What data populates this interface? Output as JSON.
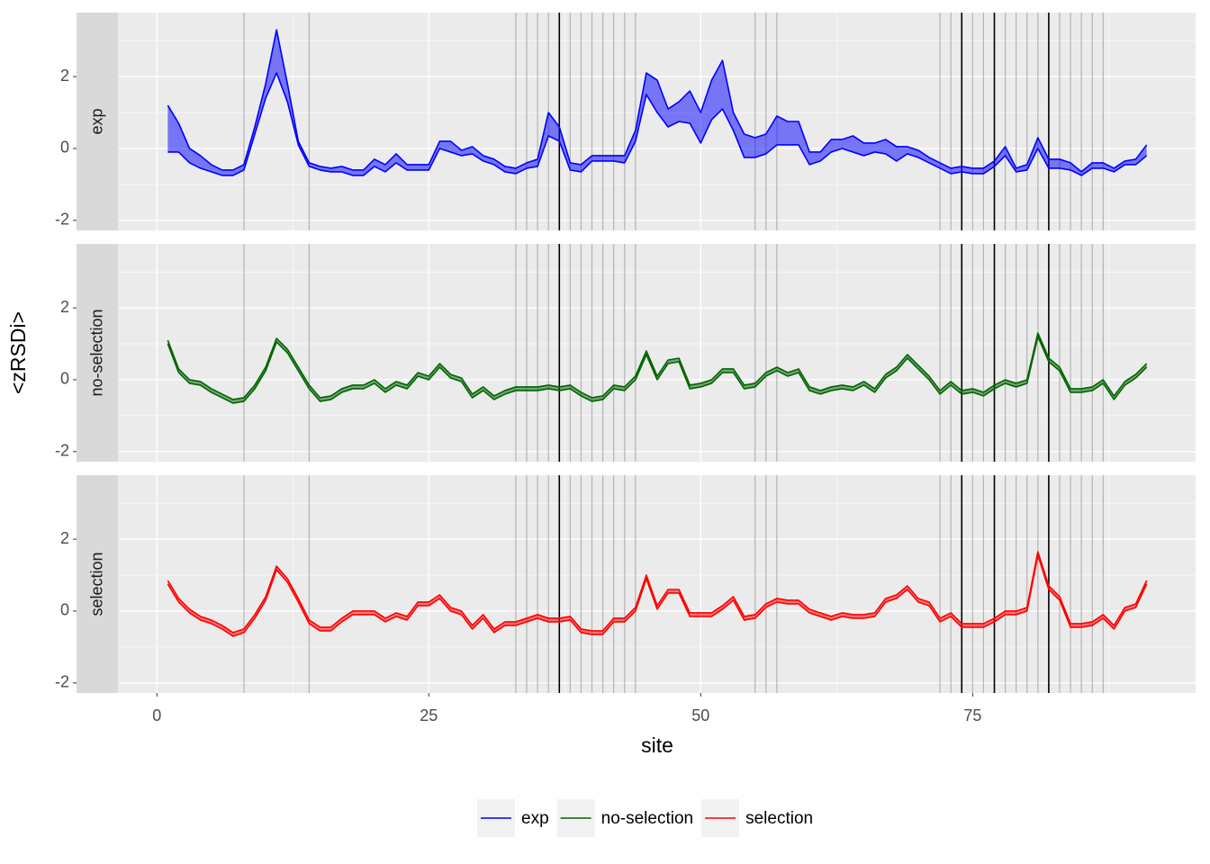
{
  "chart_data": {
    "type": "ribbon",
    "xlabel": "site",
    "ylabel": "<zRSDi>",
    "x": [
      1,
      2,
      3,
      4,
      5,
      6,
      7,
      8,
      9,
      10,
      11,
      12,
      13,
      14,
      15,
      16,
      17,
      18,
      19,
      20,
      21,
      22,
      23,
      24,
      25,
      26,
      27,
      28,
      29,
      30,
      31,
      32,
      33,
      34,
      35,
      36,
      37,
      38,
      39,
      40,
      41,
      42,
      43,
      44,
      45,
      46,
      47,
      48,
      49,
      50,
      51,
      52,
      53,
      54,
      55,
      56,
      57,
      58,
      59,
      60,
      61,
      62,
      63,
      64,
      65,
      66,
      67,
      68,
      69,
      70,
      71,
      72,
      73,
      74,
      75,
      76,
      77,
      78,
      79,
      80,
      81,
      82,
      83,
      84,
      85,
      86,
      87,
      88,
      89,
      90,
      91
    ],
    "xlim": [
      -3.5,
      95.5
    ],
    "xticks": [
      0,
      25,
      50,
      75
    ],
    "minor_xticks": [
      12.5,
      37.5,
      62.5,
      87.5
    ],
    "ylim": [
      -2.28,
      3.78
    ],
    "yticks": [
      -2,
      0,
      2
    ],
    "minor_yticks": [
      -1,
      1,
      3
    ],
    "grid": true,
    "legend": "bottom",
    "reference_lines": [
      {
        "color": "#b3b3b3",
        "x": [
          8,
          14,
          33,
          34,
          35,
          36,
          38,
          39,
          40,
          41,
          42,
          43,
          44,
          55,
          56,
          57,
          72,
          73,
          75,
          76,
          78,
          79,
          80,
          81,
          83,
          84,
          85,
          86,
          87
        ]
      },
      {
        "color": "#000000",
        "x": [
          37,
          74,
          77,
          82
        ]
      }
    ],
    "series": [
      {
        "name": "exp",
        "color": "#0000ff",
        "fill": "#8080ff",
        "upper": [
          1.2,
          0.7,
          0,
          -0.2,
          -0.45,
          -0.6,
          -0.6,
          -0.45,
          0.6,
          1.8,
          3.3,
          1.8,
          0.2,
          -0.4,
          -0.5,
          -0.55,
          -0.5,
          -0.6,
          -0.6,
          -0.3,
          -0.45,
          -0.15,
          -0.45,
          -0.45,
          -0.45,
          0.2,
          0.2,
          -0.05,
          0.05,
          -0.2,
          -0.3,
          -0.5,
          -0.55,
          -0.4,
          -0.3,
          1,
          0.6,
          -0.4,
          -0.45,
          -0.2,
          -0.2,
          -0.2,
          -0.2,
          0.5,
          2.1,
          1.9,
          1.1,
          1.3,
          1.6,
          1,
          1.9,
          2.45,
          1,
          0.4,
          0.3,
          0.4,
          0.9,
          0.75,
          0.75,
          -0.1,
          -0.1,
          0.25,
          0.25,
          0.35,
          0.15,
          0.15,
          0.25,
          0.05,
          0.05,
          -0.05,
          -0.25,
          -0.4,
          -0.55,
          -0.5,
          -0.55,
          -0.55,
          -0.35,
          0.05,
          -0.55,
          -0.45,
          0.3,
          -0.3,
          -0.3,
          -0.4,
          -0.65,
          -0.4,
          -0.4,
          -0.55,
          -0.35,
          -0.3,
          0.1
        ],
        "lower": [
          -0.1,
          -0.1,
          -0.4,
          -0.55,
          -0.65,
          -0.75,
          -0.75,
          -0.6,
          0.4,
          1.4,
          2.1,
          1.3,
          0.1,
          -0.5,
          -0.6,
          -0.65,
          -0.65,
          -0.75,
          -0.75,
          -0.5,
          -0.65,
          -0.4,
          -0.6,
          -0.6,
          -0.6,
          0,
          -0.1,
          -0.2,
          -0.15,
          -0.35,
          -0.45,
          -0.65,
          -0.7,
          -0.55,
          -0.5,
          0.35,
          0.2,
          -0.6,
          -0.65,
          -0.35,
          -0.35,
          -0.35,
          -0.4,
          0.2,
          1.5,
          1,
          0.6,
          0.75,
          0.7,
          0.15,
          0.8,
          1.1,
          0.5,
          -0.25,
          -0.25,
          -0.15,
          0.1,
          0.1,
          0.1,
          -0.45,
          -0.35,
          -0.1,
          0,
          -0.1,
          -0.2,
          -0.1,
          -0.15,
          -0.35,
          -0.15,
          -0.25,
          -0.4,
          -0.55,
          -0.7,
          -0.65,
          -0.7,
          -0.7,
          -0.5,
          -0.2,
          -0.65,
          -0.6,
          0,
          -0.55,
          -0.55,
          -0.6,
          -0.75,
          -0.55,
          -0.55,
          -0.65,
          -0.45,
          -0.45,
          -0.2
        ]
      },
      {
        "name": "no-selection",
        "color": "#006400",
        "fill": "#80b280",
        "upper": [
          1.1,
          0.3,
          0,
          -0.05,
          -0.25,
          -0.4,
          -0.55,
          -0.5,
          -0.15,
          0.35,
          1.15,
          0.85,
          0.35,
          -0.15,
          -0.5,
          -0.45,
          -0.25,
          -0.15,
          -0.15,
          0,
          -0.25,
          -0.05,
          -0.15,
          0.2,
          0.1,
          0.45,
          0.15,
          0.05,
          -0.4,
          -0.2,
          -0.45,
          -0.3,
          -0.2,
          -0.2,
          -0.2,
          -0.15,
          -0.2,
          -0.15,
          -0.35,
          -0.5,
          -0.45,
          -0.15,
          -0.2,
          0.1,
          0.8,
          0.1,
          0.55,
          0.6,
          -0.15,
          -0.1,
          0,
          0.3,
          0.3,
          -0.15,
          -0.1,
          0.2,
          0.35,
          0.2,
          0.3,
          -0.2,
          -0.3,
          -0.2,
          -0.15,
          -0.2,
          -0.05,
          -0.25,
          0.15,
          0.35,
          0.7,
          0.4,
          0.1,
          -0.3,
          -0.05,
          -0.3,
          -0.25,
          -0.35,
          -0.15,
          0,
          -0.1,
          0,
          1.3,
          0.6,
          0.35,
          -0.25,
          -0.25,
          -0.2,
          0,
          -0.45,
          -0.05,
          0.15,
          0.45
        ],
        "lower": [
          1,
          0.2,
          -0.1,
          -0.15,
          -0.35,
          -0.5,
          -0.65,
          -0.6,
          -0.25,
          0.25,
          1.05,
          0.75,
          0.25,
          -0.25,
          -0.6,
          -0.55,
          -0.35,
          -0.25,
          -0.25,
          -0.1,
          -0.35,
          -0.15,
          -0.25,
          0.1,
          0,
          0.35,
          0.05,
          -0.05,
          -0.5,
          -0.3,
          -0.55,
          -0.4,
          -0.3,
          -0.3,
          -0.3,
          -0.25,
          -0.3,
          -0.25,
          -0.45,
          -0.6,
          -0.55,
          -0.25,
          -0.3,
          0,
          0.7,
          0,
          0.45,
          0.5,
          -0.25,
          -0.2,
          -0.1,
          0.2,
          0.2,
          -0.25,
          -0.2,
          0.1,
          0.25,
          0.1,
          0.2,
          -0.3,
          -0.4,
          -0.3,
          -0.25,
          -0.3,
          -0.15,
          -0.35,
          0.05,
          0.25,
          0.6,
          0.3,
          0,
          -0.4,
          -0.15,
          -0.4,
          -0.35,
          -0.45,
          -0.25,
          -0.1,
          -0.2,
          -0.1,
          1.2,
          0.5,
          0.25,
          -0.35,
          -0.35,
          -0.3,
          -0.1,
          -0.55,
          -0.15,
          0.05,
          0.35
        ]
      },
      {
        "name": "selection",
        "color": "#ff0000",
        "fill": "#ff8080",
        "upper": [
          0.85,
          0.35,
          0.05,
          -0.15,
          -0.25,
          -0.4,
          -0.6,
          -0.5,
          -0.1,
          0.4,
          1.25,
          0.9,
          0.35,
          -0.25,
          -0.45,
          -0.45,
          -0.2,
          0,
          0,
          0,
          -0.2,
          -0.05,
          -0.15,
          0.25,
          0.25,
          0.45,
          0.1,
          0,
          -0.4,
          -0.1,
          -0.5,
          -0.3,
          -0.3,
          -0.2,
          -0.1,
          -0.2,
          -0.2,
          -0.15,
          -0.5,
          -0.55,
          -0.55,
          -0.2,
          -0.2,
          0.1,
          1,
          0.15,
          0.6,
          0.6,
          -0.05,
          -0.05,
          -0.05,
          0.15,
          0.4,
          -0.15,
          -0.1,
          0.2,
          0.35,
          0.3,
          0.3,
          0.05,
          -0.05,
          -0.15,
          -0.05,
          -0.1,
          -0.1,
          -0.05,
          0.35,
          0.45,
          0.7,
          0.35,
          0.25,
          -0.2,
          -0.05,
          -0.35,
          -0.35,
          -0.35,
          -0.2,
          0,
          0,
          0.1,
          1.65,
          0.7,
          0.4,
          -0.35,
          -0.35,
          -0.3,
          -0.1,
          -0.4,
          0.1,
          0.2,
          0.85
        ],
        "lower": [
          0.75,
          0.25,
          -0.05,
          -0.25,
          -0.35,
          -0.5,
          -0.7,
          -0.6,
          -0.2,
          0.3,
          1.15,
          0.8,
          0.25,
          -0.35,
          -0.55,
          -0.55,
          -0.3,
          -0.1,
          -0.1,
          -0.1,
          -0.3,
          -0.15,
          -0.25,
          0.15,
          0.15,
          0.35,
          0,
          -0.1,
          -0.5,
          -0.2,
          -0.6,
          -0.4,
          -0.4,
          -0.3,
          -0.2,
          -0.3,
          -0.3,
          -0.25,
          -0.6,
          -0.65,
          -0.65,
          -0.3,
          -0.3,
          0,
          0.9,
          0.05,
          0.5,
          0.5,
          -0.15,
          -0.15,
          -0.15,
          0.05,
          0.3,
          -0.25,
          -0.2,
          0.1,
          0.25,
          0.2,
          0.2,
          -0.05,
          -0.15,
          -0.25,
          -0.15,
          -0.2,
          -0.2,
          -0.15,
          0.25,
          0.35,
          0.6,
          0.25,
          0.15,
          -0.3,
          -0.15,
          -0.45,
          -0.45,
          -0.45,
          -0.3,
          -0.1,
          -0.1,
          0,
          1.55,
          0.6,
          0.3,
          -0.45,
          -0.45,
          -0.4,
          -0.2,
          -0.5,
          0,
          0.1,
          0.75
        ]
      }
    ]
  }
}
